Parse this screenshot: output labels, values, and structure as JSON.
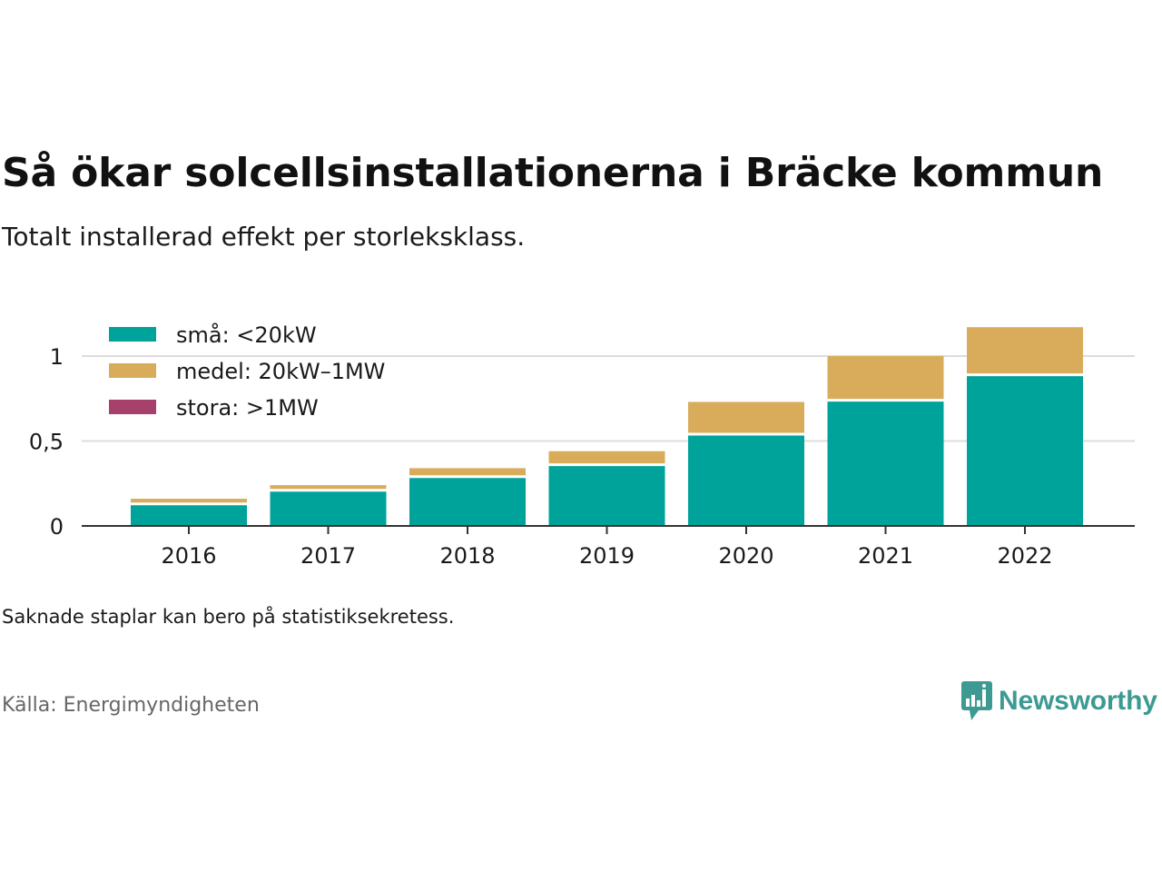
{
  "header": {
    "title": "Så ökar solcellsinstallationerna i Bräcke kommun",
    "subtitle": "Totalt installerad effekt per storleksklass."
  },
  "footer": {
    "note": "Saknade staplar kan bero på statistiksekretess.",
    "source": "Källa: Energimyndigheten",
    "brand": "Newsworthy",
    "brand_icon": "bar-chart-speech-bubble-icon",
    "brand_color": "#3d9a92"
  },
  "chart_data": {
    "type": "bar",
    "stacked": true,
    "categories": [
      "2016",
      "2017",
      "2018",
      "2019",
      "2020",
      "2021",
      "2022"
    ],
    "series": [
      {
        "name": "små: <20kW",
        "color": "#00a39a",
        "values": [
          0.13,
          0.21,
          0.29,
          0.36,
          0.54,
          0.74,
          0.89
        ]
      },
      {
        "name": "medel: 20kW–1MW",
        "color": "#d9ac5b",
        "values": [
          0.03,
          0.03,
          0.05,
          0.08,
          0.19,
          0.26,
          0.28
        ]
      },
      {
        "name": "stora: >1MW",
        "color": "#a5416b",
        "values": [
          0,
          0,
          0,
          0,
          0,
          0,
          0
        ]
      }
    ],
    "yticks": [
      0,
      0.5,
      1
    ],
    "ytick_labels": [
      "0",
      "0,5",
      "1"
    ],
    "ylim": [
      0,
      1.2
    ],
    "grid": true,
    "legend": "top-left"
  }
}
